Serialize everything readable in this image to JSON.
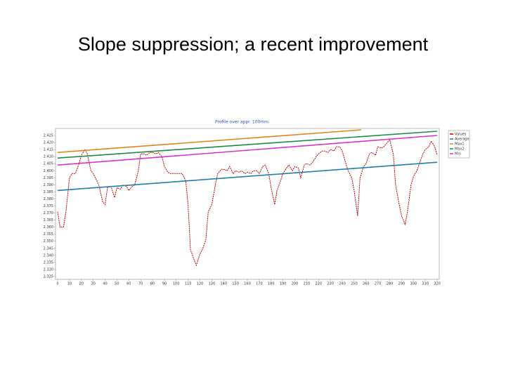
{
  "slide_title": "Slope suppression; a recent improvement",
  "chart_data": {
    "type": "line",
    "title": "Profile over appr. 100mm",
    "xlim": [
      0,
      320
    ],
    "xticks": [
      0,
      10,
      20,
      30,
      40,
      50,
      60,
      70,
      80,
      90,
      100,
      110,
      120,
      130,
      140,
      150,
      160,
      170,
      180,
      190,
      200,
      210,
      220,
      230,
      240,
      250,
      260,
      270,
      280,
      290,
      300,
      310,
      320
    ],
    "ylim": [
      2.323,
      2.43
    ],
    "yticks": [
      2.425,
      {
        "value": 2.42,
        "label": "2.420"
      },
      2.415,
      {
        "value": 2.41,
        "label": "2.410"
      },
      2.405,
      {
        "value": 2.4,
        "label": "2.400"
      },
      2.395,
      {
        "value": 2.39,
        "label": "2.390"
      },
      2.385,
      {
        "value": 2.38,
        "label": "2.380"
      },
      2.375,
      {
        "value": 2.37,
        "label": "2.370"
      },
      2.365,
      {
        "value": 2.36,
        "label": "2.360"
      },
      2.355,
      {
        "value": 2.35,
        "label": "2.350"
      },
      2.345,
      {
        "value": 2.34,
        "label": "2.340"
      },
      2.335,
      {
        "value": 2.33,
        "label": "2.330"
      },
      2.325
    ],
    "grid": false,
    "legend": "right",
    "series": [
      {
        "name": "Values",
        "color": "#c00000",
        "dashed": true,
        "x": [
          0,
          2,
          5,
          7,
          10,
          12,
          15,
          18,
          20,
          23,
          25,
          28,
          30,
          33,
          35,
          38,
          40,
          42,
          45,
          48,
          50,
          53,
          55,
          58,
          60,
          63,
          65,
          68,
          70,
          73,
          75,
          78,
          80,
          83,
          85,
          88,
          90,
          93,
          95,
          98,
          100,
          103,
          105,
          108,
          110,
          112,
          115,
          117,
          120,
          122,
          125,
          127,
          130,
          133,
          135,
          138,
          140,
          143,
          145,
          148,
          150,
          153,
          155,
          158,
          160,
          163,
          165,
          168,
          170,
          173,
          175,
          178,
          180,
          183,
          185,
          188,
          190,
          193,
          195,
          198,
          200,
          203,
          205,
          208,
          210,
          213,
          215,
          218,
          220,
          223,
          225,
          228,
          230,
          233,
          235,
          238,
          240,
          243,
          245,
          248,
          250,
          253,
          255,
          258,
          260,
          263,
          265,
          268,
          270,
          273,
          275,
          278,
          280,
          283,
          285,
          288,
          290,
          293,
          295,
          298,
          300,
          303,
          305,
          308,
          310,
          313,
          315,
          318,
          320
        ],
        "values": [
          2.371,
          2.36,
          2.36,
          2.371,
          2.395,
          2.398,
          2.398,
          2.405,
          2.411,
          2.415,
          2.412,
          2.4,
          2.398,
          2.393,
          2.389,
          2.378,
          2.376,
          2.388,
          2.389,
          2.381,
          2.388,
          2.387,
          2.39,
          2.389,
          2.386,
          2.389,
          2.39,
          2.4,
          2.412,
          2.412,
          2.411,
          2.413,
          2.413,
          2.412,
          2.413,
          2.41,
          2.403,
          2.399,
          2.398,
          2.398,
          2.398,
          2.398,
          2.398,
          2.393,
          2.376,
          2.344,
          2.337,
          2.333,
          2.341,
          2.344,
          2.351,
          2.371,
          2.376,
          2.39,
          2.398,
          2.401,
          2.401,
          2.4,
          2.403,
          2.398,
          2.4,
          2.399,
          2.4,
          2.398,
          2.399,
          2.398,
          2.4,
          2.4,
          2.398,
          2.403,
          2.404,
          2.398,
          2.388,
          2.376,
          2.386,
          2.393,
          2.398,
          2.402,
          2.404,
          2.4,
          2.403,
          2.402,
          2.395,
          2.404,
          2.405,
          2.404,
          2.406,
          2.41,
          2.412,
          2.414,
          2.414,
          2.413,
          2.415,
          2.414,
          2.417,
          2.417,
          2.414,
          2.405,
          2.4,
          2.395,
          2.386,
          2.368,
          2.395,
          2.403,
          2.405,
          2.412,
          2.413,
          2.411,
          2.417,
          2.416,
          2.417,
          2.42,
          2.422,
          2.412,
          2.39,
          2.376,
          2.368,
          2.362,
          2.371,
          2.39,
          2.396,
          2.4,
          2.405,
          2.412,
          2.415,
          2.417,
          2.421,
          2.417,
          2.411
        ]
      },
      {
        "name": "Average",
        "color": "#1f7fae",
        "x": [
          0,
          320
        ],
        "values": [
          2.386,
          2.406
        ]
      },
      {
        "name": "Max1",
        "color": "#e0861a",
        "x": [
          0,
          256
        ],
        "values": [
          2.413,
          2.429
        ]
      },
      {
        "name": "Max2",
        "color": "#1e8a4a",
        "x": [
          0,
          320
        ],
        "values": [
          2.409,
          2.428
        ]
      },
      {
        "name": "Min",
        "color": "#d633cc",
        "x": [
          0,
          320
        ],
        "values": [
          2.404,
          2.425
        ]
      }
    ]
  }
}
